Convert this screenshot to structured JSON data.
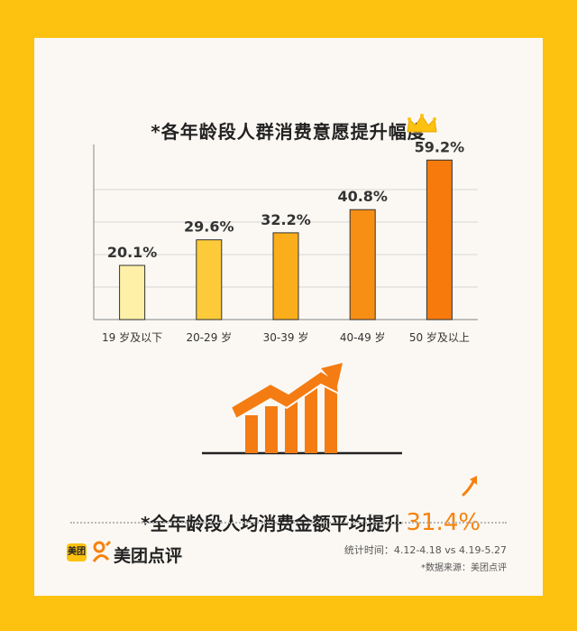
{
  "title": "*各年龄段人群消费意愿提升幅度",
  "chart_data": {
    "type": "bar",
    "title": "*各年龄段人群消费意愿提升幅度",
    "categories": [
      "19 岁及以下",
      "20-29 岁",
      "30-39 岁",
      "40-49 岁",
      "50 岁及以上"
    ],
    "values": [
      20.1,
      29.6,
      32.2,
      40.8,
      59.2
    ],
    "value_labels": [
      "20.1%",
      "29.6%",
      "32.2%",
      "40.8%",
      "59.2%"
    ],
    "colors": [
      "#FFF0A8",
      "#FDCB3A",
      "#FBAE1B",
      "#F88F15",
      "#F77A0C"
    ],
    "ylim": [
      0,
      65
    ],
    "grid": true,
    "highlight_icon": "crown-icon"
  },
  "summary": {
    "text": "*全年龄段人均消费金额平均提升",
    "value": "31.4%",
    "icon": "trend-up-arrow-icon"
  },
  "brand": {
    "badge": "美团",
    "name": "美团点评",
    "icon": "meituan-dianping-logo-icon"
  },
  "footer": {
    "stat_time": "统计时间：4.12-4.18 vs 4.19-5.27",
    "source": "*数据来源：美团点评"
  }
}
